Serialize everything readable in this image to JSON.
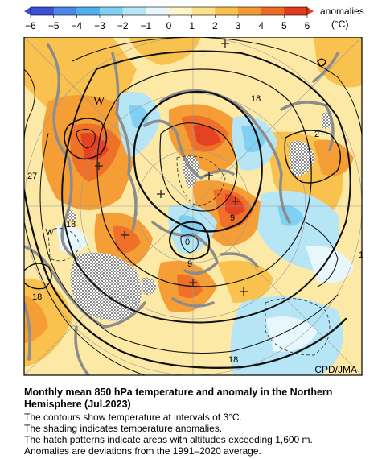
{
  "legend": {
    "ticks": [
      "−6",
      "−5",
      "−4",
      "−3",
      "−2",
      "−1",
      "0",
      "1",
      "2",
      "3",
      "4",
      "5",
      "6"
    ],
    "label": "anomalies",
    "unit": "(°C)",
    "colors": [
      "#3a50d8",
      "#4b86e8",
      "#4fb0f0",
      "#7fd0f2",
      "#b6e6f6",
      "#e8f7fc",
      "#fdf5c8",
      "#fde08a",
      "#f9c04a",
      "#f59a30",
      "#ef6a22",
      "#e23a1c"
    ]
  },
  "map": {
    "contour_labels": [
      "18",
      "27",
      "18",
      "18",
      "9",
      "0",
      "9",
      "18",
      "2",
      "1"
    ],
    "high_marks": [
      "W",
      "W"
    ],
    "credit": "CPD/JMA"
  },
  "caption": {
    "title": "Monthly mean 850 hPa temperature and anomaly in the Northern Hemisphere (Jul.2023)",
    "lines": [
      "The contours show temperature at intervals of 3°C.",
      "The shading indicates temperature anomalies.",
      "The hatch patterns indicate areas with altitudes exceeding 1,600 m.",
      "Anomalies are deviations from the 1991–2020 average."
    ]
  }
}
